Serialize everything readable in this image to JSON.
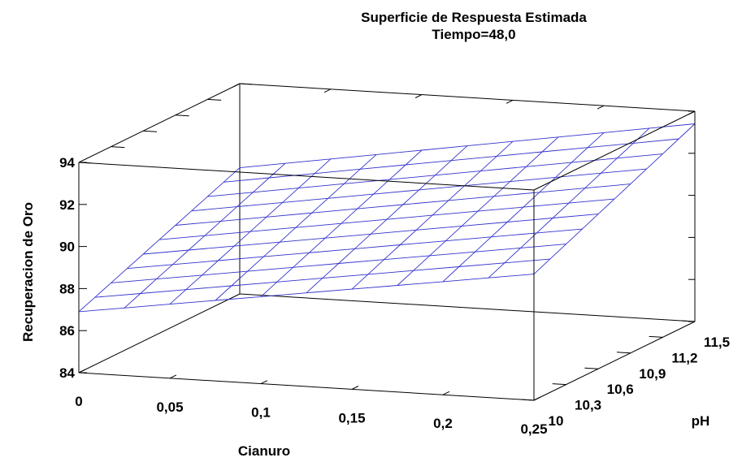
{
  "chart_data": {
    "type": "surface",
    "title": "Superficie de Respuesta Estimada",
    "subtitle": "Tiempo=48,0",
    "xlabel": "Cianuro",
    "ylabel": "pH",
    "zlabel": "Recuperacion de Oro",
    "x_ticks": [
      "0",
      "0,05",
      "0,1",
      "0,15",
      "0,2",
      "0,25"
    ],
    "y_ticks": [
      "10",
      "10,3",
      "10,6",
      "10,9",
      "11,2",
      "11,5"
    ],
    "z_ticks": [
      "84",
      "86",
      "88",
      "90",
      "92",
      "94"
    ],
    "xlim": [
      0,
      0.25
    ],
    "ylim": [
      10,
      11.5
    ],
    "zlim": [
      84,
      94
    ],
    "surface_corners": {
      "x0_y0": 86.9,
      "x1_y0": 90.0,
      "x0_y1": 90.0,
      "x1_y1": 93.4
    },
    "mesh_divisions": [
      10,
      10
    ],
    "mesh_color": "#3333cc"
  }
}
